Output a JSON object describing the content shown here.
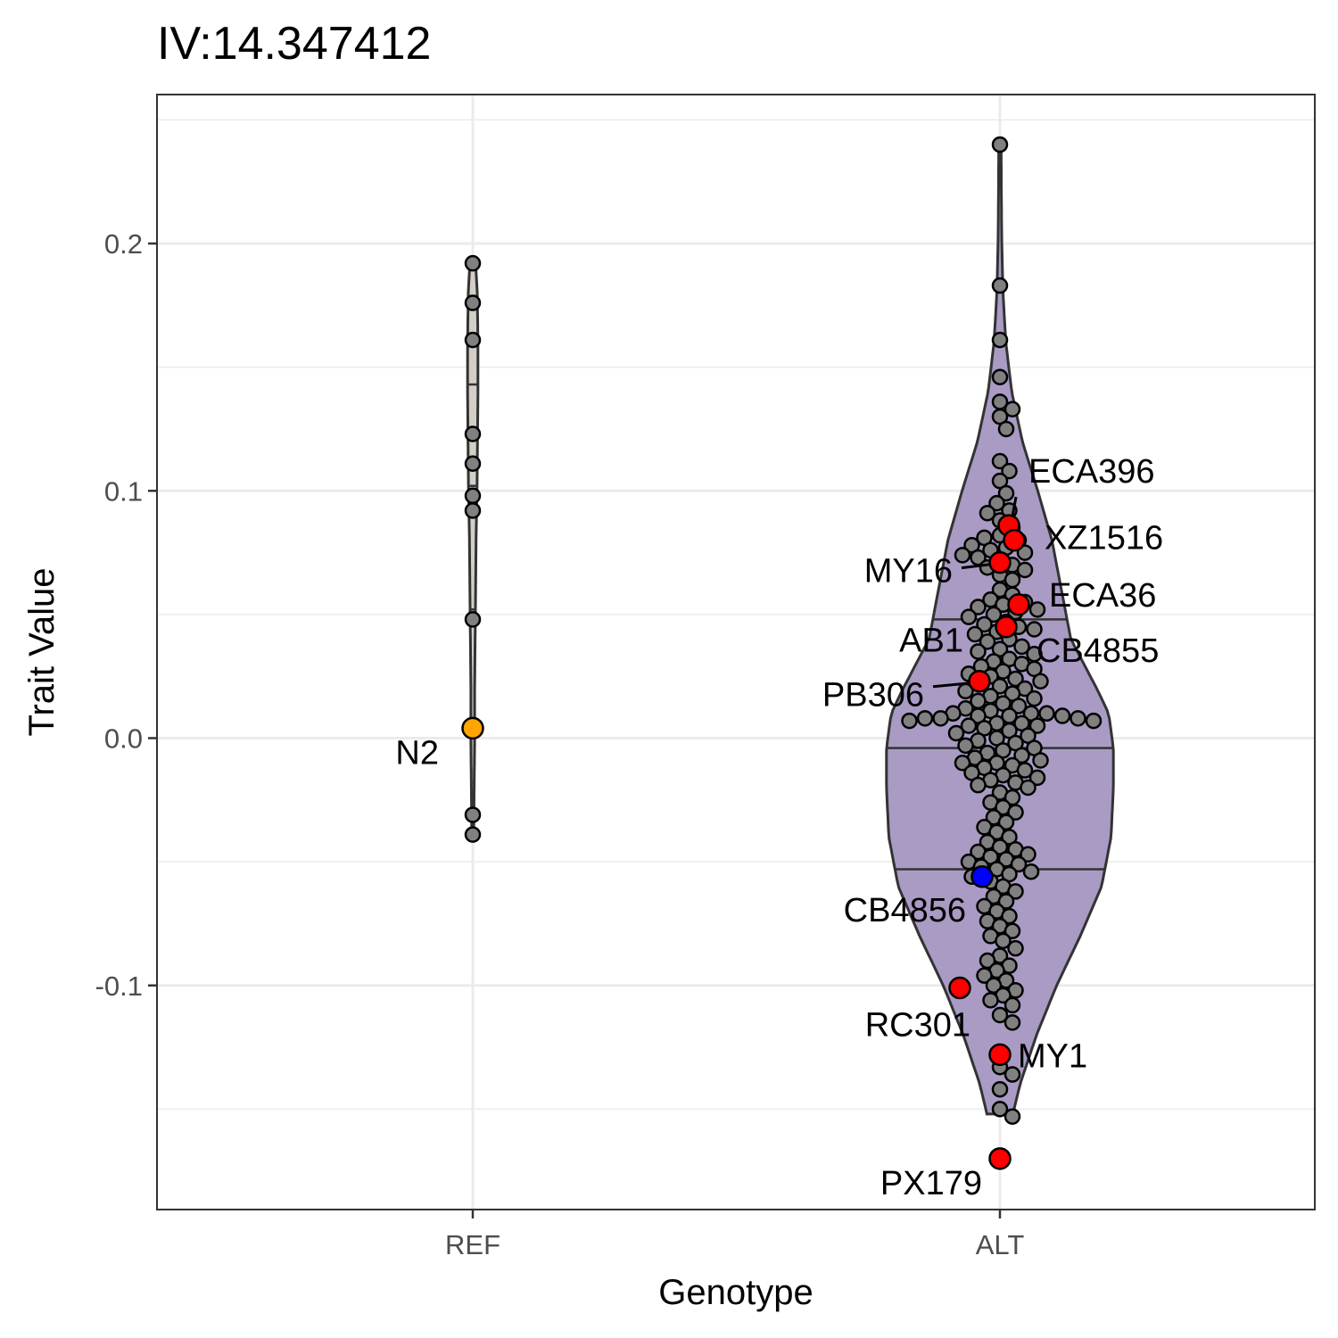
{
  "chart_data": {
    "type": "violin",
    "title": "IV:14.347412",
    "xlabel": "Genotype",
    "ylabel": "Trait Value",
    "categories": [
      "REF",
      "ALT"
    ],
    "ylim": [
      -0.19,
      0.26
    ],
    "yticks": [
      -0.1,
      0.0,
      0.1,
      0.2
    ],
    "ytick_labels": [
      "-0.1",
      "0.0",
      "0.1",
      "0.2"
    ],
    "grid": true,
    "colors": {
      "ref_violin": "#d3cec6",
      "alt_violin": "#a99bc4",
      "point": "#808080",
      "highlight": "#ff0000",
      "reference_strain": "#ffa500",
      "hawaiian_strain": "#0000ff"
    },
    "violins": [
      {
        "category": "REF",
        "range": [
          -0.039,
          0.192
        ],
        "quartiles": [
          0.052,
          0.102,
          0.143
        ],
        "density": [
          [
            -0.039,
            0.004
          ],
          [
            -0.02,
            0.006
          ],
          [
            0.0,
            0.008
          ],
          [
            0.02,
            0.008
          ],
          [
            0.04,
            0.01
          ],
          [
            0.06,
            0.012
          ],
          [
            0.08,
            0.014
          ],
          [
            0.1,
            0.018
          ],
          [
            0.12,
            0.02
          ],
          [
            0.14,
            0.022
          ],
          [
            0.16,
            0.022
          ],
          [
            0.18,
            0.019
          ],
          [
            0.192,
            0.012
          ]
        ],
        "points": [
          0.192,
          0.176,
          0.161,
          0.123,
          0.111,
          0.098,
          0.092,
          0.048,
          -0.031,
          -0.039
        ]
      },
      {
        "category": "ALT",
        "range": [
          -0.152,
          0.24
        ],
        "quartiles": [
          -0.053,
          -0.004,
          0.048
        ],
        "density": [
          [
            -0.152,
            0.055
          ],
          [
            -0.14,
            0.085
          ],
          [
            -0.12,
            0.155
          ],
          [
            -0.1,
            0.24
          ],
          [
            -0.08,
            0.34
          ],
          [
            -0.06,
            0.43
          ],
          [
            -0.04,
            0.47
          ],
          [
            -0.02,
            0.48
          ],
          [
            -0.004,
            0.48
          ],
          [
            0.01,
            0.46
          ],
          [
            0.02,
            0.41
          ],
          [
            0.04,
            0.3
          ],
          [
            0.06,
            0.26
          ],
          [
            0.08,
            0.22
          ],
          [
            0.1,
            0.16
          ],
          [
            0.12,
            0.095
          ],
          [
            0.14,
            0.05
          ],
          [
            0.16,
            0.025
          ],
          [
            0.18,
            0.013
          ],
          [
            0.2,
            0.008
          ],
          [
            0.22,
            0.006
          ],
          [
            0.24,
            0.005
          ]
        ],
        "points": [
          0.24,
          0.183,
          0.161,
          0.146,
          0.136,
          0.133,
          0.13,
          0.125,
          0.112,
          0.108,
          0.104,
          0.099,
          0.095,
          0.092,
          0.091,
          0.088,
          0.085,
          0.082,
          0.081,
          0.08,
          0.078,
          0.077,
          0.076,
          0.075,
          0.074,
          0.073,
          0.072,
          0.07,
          0.069,
          0.068,
          0.066,
          0.064,
          0.06,
          0.058,
          0.056,
          0.055,
          0.054,
          0.053,
          0.052,
          0.051,
          0.05,
          0.049,
          0.047,
          0.046,
          0.045,
          0.044,
          0.043,
          0.042,
          0.04,
          0.039,
          0.037,
          0.036,
          0.035,
          0.034,
          0.032,
          0.031,
          0.03,
          0.029,
          0.028,
          0.027,
          0.026,
          0.025,
          0.024,
          0.023,
          0.022,
          0.021,
          0.02,
          0.019,
          0.018,
          0.017,
          0.016,
          0.015,
          0.014,
          0.013,
          0.012,
          0.011,
          0.01,
          0.01,
          0.01,
          0.009,
          0.009,
          0.009,
          0.008,
          0.008,
          0.008,
          0.007,
          0.007,
          0.006,
          0.006,
          0.005,
          0.005,
          0.004,
          0.003,
          0.002,
          0.001,
          0.0,
          -0.001,
          -0.002,
          -0.003,
          -0.004,
          -0.005,
          -0.006,
          -0.007,
          -0.008,
          -0.009,
          -0.01,
          -0.01,
          -0.011,
          -0.012,
          -0.013,
          -0.014,
          -0.015,
          -0.016,
          -0.017,
          -0.018,
          -0.019,
          -0.02,
          -0.022,
          -0.024,
          -0.026,
          -0.028,
          -0.03,
          -0.032,
          -0.034,
          -0.036,
          -0.038,
          -0.04,
          -0.042,
          -0.044,
          -0.045,
          -0.046,
          -0.047,
          -0.048,
          -0.049,
          -0.05,
          -0.051,
          -0.052,
          -0.053,
          -0.054,
          -0.055,
          -0.056,
          -0.058,
          -0.06,
          -0.062,
          -0.064,
          -0.066,
          -0.068,
          -0.07,
          -0.072,
          -0.074,
          -0.076,
          -0.078,
          -0.08,
          -0.082,
          -0.085,
          -0.088,
          -0.09,
          -0.092,
          -0.094,
          -0.096,
          -0.098,
          -0.1,
          -0.102,
          -0.104,
          -0.106,
          -0.108,
          -0.112,
          -0.115,
          -0.133,
          -0.136,
          -0.142,
          -0.15,
          -0.153
        ]
      }
    ],
    "highlighted": [
      {
        "name": "N2",
        "category": "REF",
        "y": 0.004,
        "color": "#ffa500"
      },
      {
        "name": "ECA396",
        "category": "ALT",
        "y": 0.086,
        "color": "#ff0000"
      },
      {
        "name": "XZ1516",
        "category": "ALT",
        "y": 0.08,
        "color": "#ff0000"
      },
      {
        "name": "MY16",
        "category": "ALT",
        "y": 0.071,
        "color": "#ff0000"
      },
      {
        "name": "ECA36",
        "category": "ALT",
        "y": 0.054,
        "color": "#ff0000"
      },
      {
        "name": "AB1",
        "category": "ALT",
        "y": 0.045,
        "color": "#ff0000"
      },
      {
        "name": "CB4855",
        "category": "ALT",
        "y": 0.046,
        "color": "#ff0000"
      },
      {
        "name": "PB306",
        "category": "ALT",
        "y": 0.023,
        "color": "#ff0000"
      },
      {
        "name": "CB4856",
        "category": "ALT",
        "y": -0.056,
        "color": "#0000ff"
      },
      {
        "name": "RC301",
        "category": "ALT",
        "y": -0.101,
        "color": "#ff0000"
      },
      {
        "name": "MY1",
        "category": "ALT",
        "y": -0.128,
        "color": "#ff0000"
      },
      {
        "name": "PX179",
        "category": "ALT",
        "y": -0.17,
        "color": "#ff0000"
      }
    ]
  }
}
